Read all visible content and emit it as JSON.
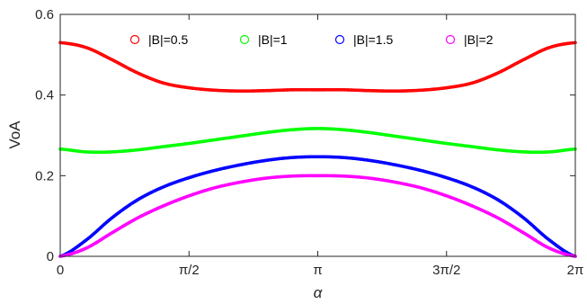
{
  "chart_data": {
    "type": "scatter",
    "xlabel": "α",
    "ylabel": "VoA",
    "xlim": [
      0,
      6.283185307
    ],
    "ylim": [
      0,
      0.6
    ],
    "xticks": [
      {
        "value": 0,
        "label": "0"
      },
      {
        "value": 1.570796327,
        "label": "π/2"
      },
      {
        "value": 3.141592654,
        "label": "π"
      },
      {
        "value": 4.71238898,
        "label": "3π/2"
      },
      {
        "value": 6.283185307,
        "label": "2π"
      }
    ],
    "yticks": [
      {
        "value": 0,
        "label": "0"
      },
      {
        "value": 0.2,
        "label": "0.2"
      },
      {
        "value": 0.4,
        "label": "0.4"
      },
      {
        "value": 0.6,
        "label": "0.6"
      }
    ],
    "grid": false,
    "legend_position": "top",
    "marker": "circle",
    "x": [
      0,
      0.314159,
      0.628319,
      0.942478,
      1.256637,
      1.570796,
      1.884956,
      2.199115,
      2.513274,
      2.827433,
      3.141593,
      3.455752,
      3.769911,
      4.08407,
      4.39823,
      4.712389,
      5.026548,
      5.340708,
      5.654867,
      5.969026,
      6.283185
    ],
    "series": [
      {
        "name": "|B|=0.5",
        "color": "#ff0000",
        "values": [
          0.53,
          0.518,
          0.488,
          0.455,
          0.43,
          0.418,
          0.412,
          0.41,
          0.411,
          0.413,
          0.413,
          0.413,
          0.411,
          0.41,
          0.412,
          0.418,
          0.43,
          0.455,
          0.488,
          0.518,
          0.53
        ]
      },
      {
        "name": "|B|=1",
        "color": "#00ff00",
        "values": [
          0.266,
          0.259,
          0.259,
          0.264,
          0.272,
          0.28,
          0.289,
          0.298,
          0.307,
          0.314,
          0.317,
          0.314,
          0.307,
          0.298,
          0.289,
          0.28,
          0.272,
          0.264,
          0.259,
          0.259,
          0.266
        ]
      },
      {
        "name": "|B|=1.5",
        "color": "#0000ff",
        "values": [
          0.0,
          0.04,
          0.095,
          0.14,
          0.172,
          0.195,
          0.213,
          0.227,
          0.238,
          0.245,
          0.247,
          0.245,
          0.238,
          0.227,
          0.213,
          0.195,
          0.172,
          0.14,
          0.095,
          0.04,
          0.0
        ]
      },
      {
        "name": "|B|=2",
        "color": "#ff00ff",
        "values": [
          0.0,
          0.02,
          0.058,
          0.095,
          0.125,
          0.15,
          0.17,
          0.184,
          0.194,
          0.199,
          0.2,
          0.199,
          0.194,
          0.184,
          0.17,
          0.15,
          0.125,
          0.095,
          0.058,
          0.02,
          0.0
        ]
      }
    ]
  }
}
